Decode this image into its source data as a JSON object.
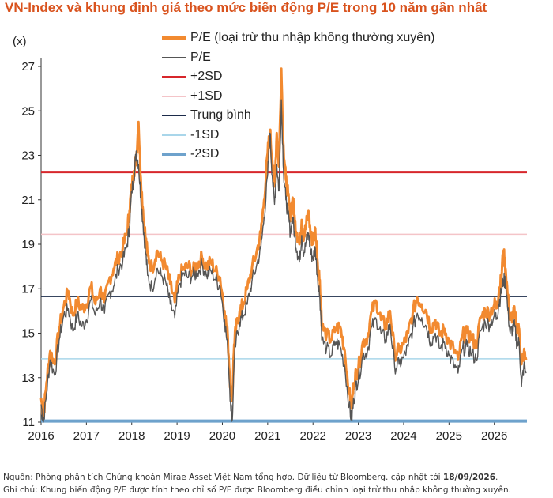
{
  "header": {
    "title": "VN-Index và khung định giá theo mức biến động P/E trong 10 năm gần nhất",
    "unit": "(x)"
  },
  "footer": {
    "source_prefix": "Nguồn: Phòng phân tích Chứng khoán Mirae Asset Việt Nam tổng hợp. Dữ liệu từ Bloomberg. cập nhật tới ",
    "source_date": "18/09/2026",
    "source_suffix": ".",
    "note": "Ghi chú: Khung biến động P/E được tính theo chỉ số P/E được Bloomberg điều chỉnh loại trừ thu nhập không thường xuyên."
  },
  "colors": {
    "title": "#d9531e",
    "pe_adjusted": "#f28a30",
    "pe": "#555555",
    "plus2sd": "#d7262b",
    "plus1sd": "#f4c4c8",
    "mean": "#1c2b4a",
    "minus1sd": "#a9d6ea",
    "minus2sd": "#6ea2cc"
  },
  "chart_data": {
    "type": "line",
    "title": "VN-Index và khung định giá theo mức biến động P/E trong 10 năm gần nhất",
    "ylabel": "(x)",
    "xlabel": "",
    "ylim": [
      11,
      27
    ],
    "xlim": [
      2016,
      2026.72
    ],
    "y_ticks": [
      11,
      13,
      15,
      17,
      19,
      21,
      23,
      25,
      27
    ],
    "x_ticks": [
      "2016",
      "2017",
      "2018",
      "2019",
      "2020",
      "2021",
      "2022",
      "2023",
      "2024",
      "2025",
      "2026"
    ],
    "legend_position": "top-center",
    "grid": false,
    "bands": [
      {
        "name": "+2SD",
        "value": 22.25
      },
      {
        "name": "+1SD",
        "value": 19.45
      },
      {
        "name": "Trung bình",
        "value": 16.65
      },
      {
        "name": "-1SD",
        "value": 13.85
      },
      {
        "name": "-2SD",
        "value": 11.05
      }
    ],
    "series": [
      {
        "name": "P/E (loại trừ thu nhập không thường xuyên)",
        "x": [
          2016.0,
          2016.05,
          2016.12,
          2016.2,
          2016.3,
          2016.4,
          2016.5,
          2016.6,
          2016.7,
          2016.8,
          2016.9,
          2017.0,
          2017.1,
          2017.2,
          2017.3,
          2017.4,
          2017.5,
          2017.6,
          2017.7,
          2017.8,
          2017.9,
          2017.95,
          2018.0,
          2018.05,
          2018.1,
          2018.15,
          2018.2,
          2018.25,
          2018.3,
          2018.35,
          2018.45,
          2018.55,
          2018.65,
          2018.75,
          2018.85,
          2018.95,
          2019.05,
          2019.15,
          2019.25,
          2019.35,
          2019.45,
          2019.55,
          2019.65,
          2019.75,
          2019.85,
          2019.95,
          2020.05,
          2020.12,
          2020.18,
          2020.22,
          2020.26,
          2020.3,
          2020.38,
          2020.46,
          2020.55,
          2020.65,
          2020.75,
          2020.85,
          2020.92,
          2021.0,
          2021.05,
          2021.1,
          2021.15,
          2021.2,
          2021.25,
          2021.3,
          2021.35,
          2021.4,
          2021.45,
          2021.5,
          2021.55,
          2021.6,
          2021.65,
          2021.7,
          2021.75,
          2021.8,
          2021.85,
          2021.9,
          2021.95,
          2022.0,
          2022.05,
          2022.1,
          2022.15,
          2022.2,
          2022.3,
          2022.4,
          2022.5,
          2022.6,
          2022.7,
          2022.8,
          2022.85,
          2022.9,
          2022.95,
          2023.0,
          2023.1,
          2023.2,
          2023.3,
          2023.4,
          2023.5,
          2023.6,
          2023.7,
          2023.8,
          2023.9,
          2024.0,
          2024.1,
          2024.2,
          2024.3,
          2024.4,
          2024.5,
          2024.6,
          2024.7,
          2024.8,
          2024.9,
          2025.0,
          2025.1,
          2025.2,
          2025.3,
          2025.4,
          2025.5,
          2025.6,
          2025.7,
          2025.8,
          2025.9,
          2026.0,
          2026.05,
          2026.1,
          2026.15,
          2026.2,
          2026.25,
          2026.3,
          2026.35,
          2026.4,
          2026.45,
          2026.5,
          2026.55,
          2026.6,
          2026.65,
          2026.7
        ],
        "values": [
          12.1,
          11.2,
          12.8,
          14.2,
          13.6,
          15.2,
          16.2,
          16.9,
          15.8,
          16.4,
          16.1,
          16.3,
          17.1,
          16.3,
          17.0,
          16.4,
          17.4,
          17.9,
          18.4,
          18.8,
          19.6,
          20.5,
          21.6,
          22.3,
          22.9,
          24.5,
          22.0,
          20.5,
          19.4,
          18.5,
          17.9,
          18.7,
          18.3,
          18.0,
          17.2,
          16.4,
          17.6,
          17.9,
          18.0,
          17.8,
          18.1,
          18.4,
          18.0,
          18.2,
          17.8,
          17.5,
          16.0,
          14.8,
          12.5,
          12.2,
          14.5,
          15.2,
          16.0,
          16.3,
          17.0,
          17.9,
          18.6,
          19.5,
          21.0,
          23.1,
          24.1,
          22.8,
          21.6,
          24.0,
          22.5,
          26.9,
          23.4,
          21.9,
          21.2,
          20.2,
          21.1,
          20.0,
          19.5,
          19.0,
          20.1,
          19.3,
          19.9,
          20.5,
          19.4,
          19.1,
          19.7,
          18.2,
          17.4,
          15.3,
          14.9,
          14.7,
          15.2,
          15.3,
          14.2,
          12.3,
          11.6,
          12.7,
          13.2,
          13.4,
          14.6,
          14.8,
          16.0,
          16.4,
          15.6,
          15.3,
          16.0,
          14.1,
          14.2,
          14.5,
          15.0,
          15.9,
          16.6,
          16.3,
          16.0,
          15.2,
          15.6,
          14.9,
          15.2,
          14.6,
          14.3,
          13.8,
          14.9,
          15.0,
          14.8,
          14.4,
          15.7,
          16.0,
          15.9,
          16.3,
          16.2,
          16.8,
          17.4,
          18.7,
          17.9,
          16.6,
          15.6,
          15.8,
          15.9,
          15.1,
          15.2,
          13.6,
          14.1,
          13.8
        ]
      },
      {
        "name": "P/E",
        "x": [
          2016.0,
          2016.05,
          2016.12,
          2016.2,
          2016.3,
          2016.4,
          2016.5,
          2016.6,
          2016.7,
          2016.8,
          2016.9,
          2017.0,
          2017.1,
          2017.2,
          2017.3,
          2017.4,
          2017.5,
          2017.6,
          2017.7,
          2017.8,
          2017.9,
          2017.95,
          2018.0,
          2018.05,
          2018.1,
          2018.15,
          2018.2,
          2018.25,
          2018.3,
          2018.35,
          2018.45,
          2018.55,
          2018.65,
          2018.75,
          2018.85,
          2018.95,
          2019.05,
          2019.15,
          2019.25,
          2019.35,
          2019.45,
          2019.55,
          2019.65,
          2019.75,
          2019.85,
          2019.95,
          2020.05,
          2020.12,
          2020.18,
          2020.22,
          2020.26,
          2020.3,
          2020.38,
          2020.46,
          2020.55,
          2020.65,
          2020.75,
          2020.85,
          2020.92,
          2021.0,
          2021.05,
          2021.1,
          2021.15,
          2021.2,
          2021.25,
          2021.3,
          2021.35,
          2021.4,
          2021.45,
          2021.5,
          2021.55,
          2021.6,
          2021.65,
          2021.7,
          2021.75,
          2021.8,
          2021.85,
          2021.9,
          2021.95,
          2022.0,
          2022.05,
          2022.1,
          2022.15,
          2022.2,
          2022.3,
          2022.4,
          2022.5,
          2022.6,
          2022.7,
          2022.8,
          2022.85,
          2022.9,
          2022.95,
          2023.0,
          2023.1,
          2023.2,
          2023.3,
          2023.4,
          2023.5,
          2023.6,
          2023.7,
          2023.8,
          2023.9,
          2024.0,
          2024.1,
          2024.2,
          2024.3,
          2024.4,
          2024.5,
          2024.6,
          2024.7,
          2024.8,
          2024.9,
          2025.0,
          2025.1,
          2025.2,
          2025.3,
          2025.4,
          2025.5,
          2025.6,
          2025.7,
          2025.8,
          2025.9,
          2026.0,
          2026.05,
          2026.1,
          2026.15,
          2026.2,
          2026.25,
          2026.3,
          2026.35,
          2026.4,
          2026.45,
          2026.5,
          2026.55,
          2026.6,
          2026.65,
          2026.7
        ],
        "values": [
          11.8,
          11.0,
          12.3,
          13.8,
          13.1,
          14.7,
          15.8,
          16.1,
          15.1,
          15.8,
          15.3,
          15.6,
          16.5,
          15.8,
          16.5,
          15.9,
          16.8,
          17.1,
          17.9,
          18.2,
          19.0,
          19.8,
          21.4,
          22.0,
          23.2,
          22.6,
          21.1,
          19.9,
          18.8,
          17.6,
          17.0,
          17.9,
          17.6,
          17.3,
          16.3,
          15.7,
          17.2,
          17.7,
          17.5,
          17.6,
          17.7,
          18.1,
          17.6,
          17.8,
          17.4,
          17.1,
          15.6,
          14.2,
          11.9,
          11.1,
          13.8,
          14.6,
          15.5,
          15.8,
          16.3,
          17.3,
          18.0,
          18.8,
          20.2,
          22.1,
          24.0,
          22.1,
          20.8,
          22.6,
          21.4,
          25.5,
          22.3,
          21.0,
          20.4,
          19.5,
          20.2,
          19.3,
          18.7,
          18.2,
          19.4,
          18.6,
          19.1,
          19.5,
          18.6,
          18.4,
          18.8,
          17.5,
          16.7,
          14.7,
          14.3,
          14.0,
          14.6,
          14.4,
          13.5,
          11.7,
          11.1,
          12.0,
          12.7,
          12.9,
          14.0,
          14.2,
          15.3,
          15.6,
          15.0,
          14.7,
          15.4,
          13.5,
          13.6,
          13.9,
          14.4,
          15.2,
          15.9,
          15.7,
          15.3,
          14.6,
          15.0,
          14.3,
          14.6,
          14.0,
          13.6,
          13.2,
          14.3,
          14.4,
          14.1,
          13.8,
          15.1,
          15.5,
          15.4,
          15.8,
          15.7,
          16.3,
          16.8,
          17.4,
          17.3,
          16.0,
          15.0,
          15.2,
          15.3,
          14.5,
          14.6,
          12.6,
          13.5,
          13.2
        ]
      }
    ]
  }
}
